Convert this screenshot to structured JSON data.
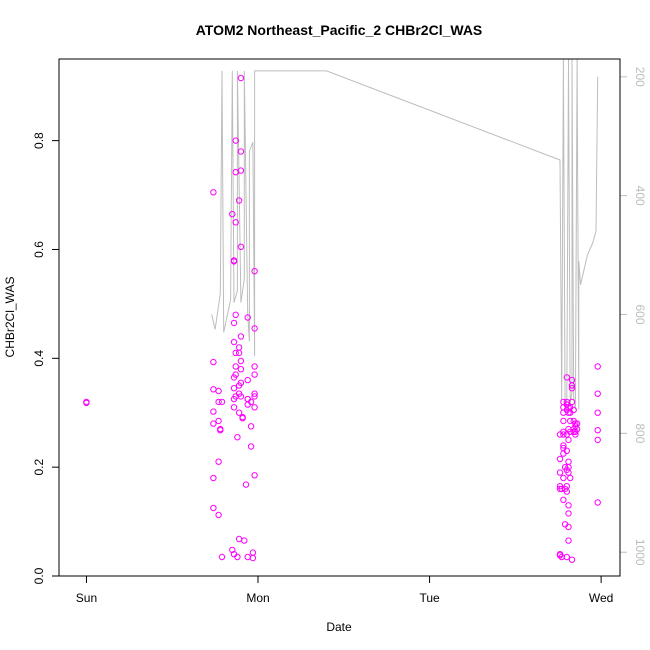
{
  "chart_data": {
    "type": "scatter",
    "title": "ATOM2 Northeast_Pacific_2 CHBr2Cl_WAS",
    "xlabel": "Date",
    "ylabel": "CHBr2Cl_WAS",
    "x_ticks": [
      {
        "label": "Sun",
        "value": 0
      },
      {
        "label": "Mon",
        "value": 1
      },
      {
        "label": "Tue",
        "value": 2
      },
      {
        "label": "Wed",
        "value": 3
      }
    ],
    "xlim": [
      -0.16,
      3.11
    ],
    "ylim": [
      0,
      0.95
    ],
    "y_ticks": [
      0.0,
      0.2,
      0.4,
      0.6,
      0.8
    ],
    "y2_label": "",
    "y2_ticks": [
      200,
      400,
      600,
      800,
      1000
    ],
    "y2lim": [
      1040,
      170
    ],
    "colors": {
      "points": "#ff00ff",
      "line": "#bdbdbd",
      "axis": "#000000",
      "right_axis": "#bdbdbd"
    },
    "series": [
      {
        "kind": "points",
        "points": [
          [
            0.0,
            0.32
          ],
          [
            0.0,
            0.318
          ],
          [
            0.74,
            0.705
          ],
          [
            0.74,
            0.393
          ],
          [
            0.74,
            0.343
          ],
          [
            0.74,
            0.302
          ],
          [
            0.74,
            0.28
          ],
          [
            0.74,
            0.18
          ],
          [
            0.74,
            0.125
          ],
          [
            0.77,
            0.34
          ],
          [
            0.77,
            0.32
          ],
          [
            0.77,
            0.285
          ],
          [
            0.77,
            0.21
          ],
          [
            0.77,
            0.112
          ],
          [
            0.78,
            0.27
          ],
          [
            0.78,
            0.268
          ],
          [
            0.79,
            0.32
          ],
          [
            0.79,
            0.035
          ],
          [
            0.85,
            0.048
          ],
          [
            0.86,
            0.31
          ],
          [
            0.85,
            0.665
          ],
          [
            0.86,
            0.578
          ],
          [
            0.86,
            0.58
          ],
          [
            0.86,
            0.465
          ],
          [
            0.86,
            0.43
          ],
          [
            0.86,
            0.365
          ],
          [
            0.86,
            0.345
          ],
          [
            0.86,
            0.325
          ],
          [
            0.86,
            0.04
          ],
          [
            0.87,
            0.8
          ],
          [
            0.87,
            0.742
          ],
          [
            0.87,
            0.65
          ],
          [
            0.87,
            0.48
          ],
          [
            0.87,
            0.41
          ],
          [
            0.87,
            0.385
          ],
          [
            0.87,
            0.37
          ],
          [
            0.87,
            0.33
          ],
          [
            0.88,
            0.255
          ],
          [
            0.88,
            0.035
          ],
          [
            0.89,
            0.068
          ],
          [
            0.89,
            0.69
          ],
          [
            0.89,
            0.42
          ],
          [
            0.89,
            0.41
          ],
          [
            0.89,
            0.35
          ],
          [
            0.89,
            0.335
          ],
          [
            0.89,
            0.3
          ],
          [
            0.9,
            0.915
          ],
          [
            0.9,
            0.78
          ],
          [
            0.9,
            0.745
          ],
          [
            0.9,
            0.605
          ],
          [
            0.9,
            0.44
          ],
          [
            0.9,
            0.395
          ],
          [
            0.9,
            0.38
          ],
          [
            0.9,
            0.355
          ],
          [
            0.9,
            0.33
          ],
          [
            0.91,
            0.292
          ],
          [
            0.91,
            0.29
          ],
          [
            0.92,
            0.065
          ],
          [
            0.93,
            0.168
          ],
          [
            0.94,
            0.475
          ],
          [
            0.94,
            0.36
          ],
          [
            0.94,
            0.325
          ],
          [
            0.94,
            0.325
          ],
          [
            0.94,
            0.315
          ],
          [
            0.94,
            0.035
          ],
          [
            0.96,
            0.238
          ],
          [
            0.96,
            0.275
          ],
          [
            0.96,
            0.32
          ],
          [
            0.97,
            0.043
          ],
          [
            0.97,
            0.033
          ],
          [
            0.98,
            0.56
          ],
          [
            0.98,
            0.455
          ],
          [
            0.98,
            0.385
          ],
          [
            0.98,
            0.37
          ],
          [
            0.98,
            0.335
          ],
          [
            0.98,
            0.33
          ],
          [
            0.98,
            0.31
          ],
          [
            0.98,
            0.185
          ],
          [
            2.76,
            0.26
          ],
          [
            2.76,
            0.215
          ],
          [
            2.76,
            0.19
          ],
          [
            2.76,
            0.165
          ],
          [
            2.76,
            0.16
          ],
          [
            2.76,
            0.04
          ],
          [
            2.76,
            0.038
          ],
          [
            2.77,
            0.16
          ],
          [
            2.77,
            0.035
          ],
          [
            2.78,
            0.32
          ],
          [
            2.78,
            0.31
          ],
          [
            2.78,
            0.3
          ],
          [
            2.78,
            0.285
          ],
          [
            2.78,
            0.265
          ],
          [
            2.78,
            0.26
          ],
          [
            2.78,
            0.24
          ],
          [
            2.78,
            0.235
          ],
          [
            2.78,
            0.225
          ],
          [
            2.78,
            0.18
          ],
          [
            2.78,
            0.14
          ],
          [
            2.79,
            0.16
          ],
          [
            2.79,
            0.095
          ],
          [
            2.79,
            0.2
          ],
          [
            2.8,
            0.365
          ],
          [
            2.8,
            0.32
          ],
          [
            2.8,
            0.315
          ],
          [
            2.8,
            0.305
          ],
          [
            2.8,
            0.26
          ],
          [
            2.8,
            0.23
          ],
          [
            2.8,
            0.195
          ],
          [
            2.8,
            0.165
          ],
          [
            2.8,
            0.155
          ],
          [
            2.8,
            0.035
          ],
          [
            2.81,
            0.31
          ],
          [
            2.81,
            0.3
          ],
          [
            2.81,
            0.27
          ],
          [
            2.81,
            0.25
          ],
          [
            2.81,
            0.21
          ],
          [
            2.81,
            0.2
          ],
          [
            2.81,
            0.19
          ],
          [
            2.81,
            0.13
          ],
          [
            2.81,
            0.115
          ],
          [
            2.81,
            0.09
          ],
          [
            2.81,
            0.065
          ],
          [
            2.82,
            0.31
          ],
          [
            2.82,
            0.3
          ],
          [
            2.82,
            0.285
          ],
          [
            2.82,
            0.265
          ],
          [
            2.82,
            0.18
          ],
          [
            2.83,
            0.36
          ],
          [
            2.83,
            0.35
          ],
          [
            2.83,
            0.345
          ],
          [
            2.83,
            0.32
          ],
          [
            2.83,
            0.03
          ],
          [
            2.84,
            0.305
          ],
          [
            2.84,
            0.285
          ],
          [
            2.84,
            0.27
          ],
          [
            2.84,
            0.265
          ],
          [
            2.85,
            0.28
          ],
          [
            2.85,
            0.275
          ],
          [
            2.85,
            0.265
          ],
          [
            2.85,
            0.26
          ],
          [
            2.86,
            0.28
          ],
          [
            2.86,
            0.27
          ],
          [
            2.98,
            0.385
          ],
          [
            2.98,
            0.335
          ],
          [
            2.98,
            0.3
          ],
          [
            2.98,
            0.268
          ],
          [
            2.98,
            0.25
          ],
          [
            2.98,
            0.135
          ]
        ]
      },
      {
        "kind": "line",
        "axis": "right",
        "points": [
          [
            0.73,
            600
          ],
          [
            0.75,
            625
          ],
          [
            0.78,
            565
          ],
          [
            0.79,
            190
          ],
          [
            0.8,
            630
          ],
          [
            0.84,
            575
          ],
          [
            0.85,
            190
          ],
          [
            0.86,
            580
          ],
          [
            0.88,
            560
          ],
          [
            0.88,
            190
          ],
          [
            0.9,
            580
          ],
          [
            0.92,
            540
          ],
          [
            0.92,
            190
          ],
          [
            0.94,
            600
          ],
          [
            0.95,
            645
          ],
          [
            0.95,
            325
          ],
          [
            0.97,
            310
          ],
          [
            0.98,
            670
          ],
          [
            0.98,
            190
          ],
          [
            1.4,
            190
          ],
          [
            2.76,
            340
          ],
          [
            2.77,
            745
          ],
          [
            2.78,
            170
          ],
          [
            2.79,
            760
          ],
          [
            2.8,
            745
          ],
          [
            2.81,
            170
          ],
          [
            2.82,
            750
          ],
          [
            2.83,
            730
          ],
          [
            2.83,
            170
          ],
          [
            2.84,
            740
          ],
          [
            2.85,
            760
          ],
          [
            2.86,
            170
          ],
          [
            2.87,
            760
          ],
          [
            2.87,
            510
          ],
          [
            2.88,
            550
          ],
          [
            2.92,
            500
          ],
          [
            2.95,
            480
          ],
          [
            2.97,
            460
          ],
          [
            2.98,
            200
          ]
        ]
      }
    ]
  }
}
